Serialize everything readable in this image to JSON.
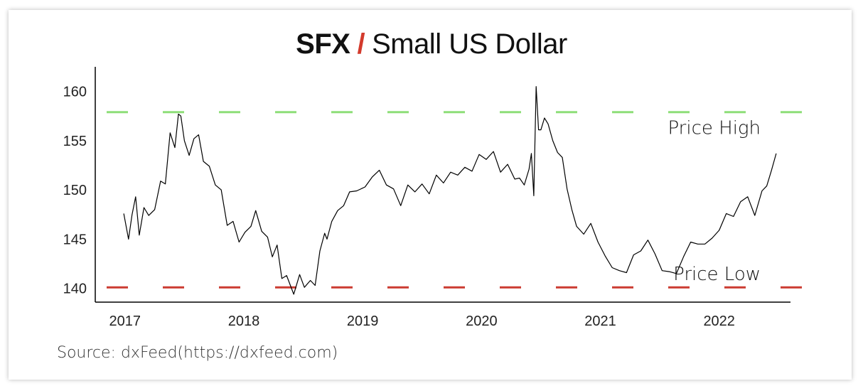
{
  "title": {
    "symbol": "SFX",
    "separator": "/",
    "name": "Small US Dollar"
  },
  "source": "Source: dxFeed(https://dxfeed.com)",
  "colors": {
    "price_high_line": "#8ede78",
    "price_low_line": "#cc3b31",
    "series": "#000000",
    "title_separator": "#d33a2c"
  },
  "chart_data": {
    "type": "line",
    "title": "SFX / Small US Dollar",
    "xlabel": "",
    "ylabel": "",
    "x_ticks": [
      "2017",
      "2018",
      "2019",
      "2020",
      "2021",
      "2022"
    ],
    "y_ticks": [
      160,
      155,
      150,
      145,
      140
    ],
    "xlim": [
      2016.75,
      2022.6
    ],
    "ylim": [
      138.6,
      162.5
    ],
    "grid": false,
    "reference_lines": [
      {
        "label": "Price High",
        "value": 157.9,
        "color": "#8ede78",
        "style": "dashed"
      },
      {
        "label": "Price Low",
        "value": 140.1,
        "color": "#cc3b31",
        "style": "dashed"
      }
    ],
    "series": [
      {
        "x": [
          2016.99,
          2017.03,
          2017.06,
          2017.09,
          2017.12,
          2017.16,
          2017.2,
          2017.25,
          2017.3,
          2017.34,
          2017.38,
          2017.42,
          2017.45,
          2017.47,
          2017.5,
          2017.54,
          2017.58,
          2017.62,
          2017.66,
          2017.71,
          2017.76,
          2017.81,
          2017.86,
          2017.91,
          2017.96,
          2018.01,
          2018.06,
          2018.1,
          2018.15,
          2018.2,
          2018.24,
          2018.28,
          2018.32,
          2018.36,
          2018.42,
          2018.47,
          2018.51,
          2018.56,
          2018.6,
          2018.64,
          2018.68,
          2018.7,
          2018.74,
          2018.79,
          2018.84,
          2018.89,
          2018.95,
          2019.02,
          2019.08,
          2019.14,
          2019.2,
          2019.26,
          2019.32,
          2019.38,
          2019.44,
          2019.5,
          2019.56,
          2019.62,
          2019.68,
          2019.74,
          2019.8,
          2019.86,
          2019.92,
          2019.98,
          2020.04,
          2020.1,
          2020.16,
          2020.22,
          2020.28,
          2020.32,
          2020.36,
          2020.4,
          2020.42,
          2020.44,
          2020.46,
          2020.48,
          2020.5,
          2020.53,
          2020.56,
          2020.6,
          2020.64,
          2020.68,
          2020.72,
          2020.76,
          2020.8,
          2020.86,
          2020.92,
          2020.98,
          2021.04,
          2021.1,
          2021.16,
          2021.22,
          2021.28,
          2021.34,
          2021.4,
          2021.46,
          2021.52,
          2021.58,
          2021.64,
          2021.7,
          2021.76,
          2021.82,
          2021.88,
          2021.94,
          2022.0,
          2022.06,
          2022.12,
          2022.18,
          2022.24,
          2022.3,
          2022.36,
          2022.4,
          2022.44,
          2022.48
        ],
        "y": [
          147.6,
          145.0,
          147.5,
          149.3,
          145.4,
          148.2,
          147.4,
          148.0,
          150.9,
          150.6,
          155.8,
          154.3,
          157.7,
          157.5,
          155.0,
          153.5,
          155.2,
          155.6,
          152.9,
          152.4,
          150.5,
          150.0,
          146.4,
          146.8,
          144.7,
          145.7,
          146.3,
          147.9,
          145.8,
          145.2,
          143.2,
          144.4,
          141.0,
          141.3,
          139.4,
          141.4,
          140.1,
          140.8,
          140.3,
          143.8,
          145.6,
          145.0,
          146.8,
          147.9,
          148.4,
          149.8,
          149.9,
          150.3,
          151.3,
          152.0,
          150.5,
          150.1,
          148.4,
          150.5,
          149.8,
          150.6,
          149.6,
          151.5,
          150.7,
          151.8,
          151.5,
          152.3,
          151.9,
          153.6,
          153.1,
          153.9,
          151.8,
          152.6,
          151.1,
          151.2,
          150.5,
          152.1,
          153.7,
          149.4,
          160.5,
          156.1,
          156.1,
          157.3,
          156.7,
          155.0,
          153.8,
          153.3,
          150.1,
          148.0,
          146.3,
          145.5,
          146.6,
          144.7,
          143.3,
          142.1,
          141.8,
          141.6,
          143.4,
          143.8,
          144.9,
          143.5,
          141.8,
          141.7,
          141.5,
          143.2,
          144.7,
          144.5,
          144.5,
          145.1,
          145.9,
          147.6,
          147.3,
          148.8,
          149.3,
          147.4,
          149.9,
          150.4,
          152.0,
          153.7
        ]
      }
    ]
  }
}
